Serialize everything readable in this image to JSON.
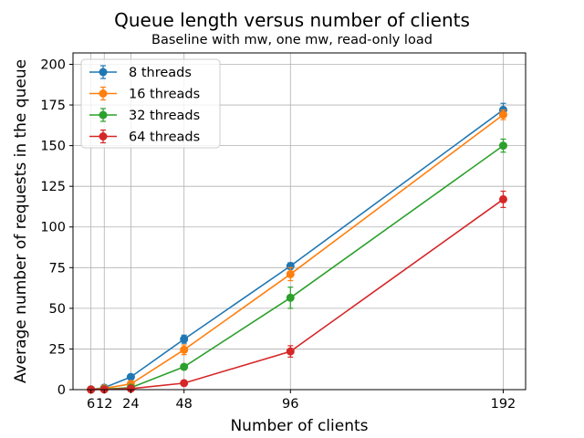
{
  "chart_data": {
    "type": "line",
    "title": "Queue length versus number of clients",
    "subtitle": "Baseline with mw, one mw, read-only load",
    "xlabel": "Number of clients",
    "ylabel": "Average number of requests in the queue",
    "x": [
      6,
      12,
      24,
      48,
      96,
      192
    ],
    "xticks": [
      "6",
      "12",
      "24",
      "48",
      "96",
      "192"
    ],
    "xlim": [
      -2.1,
      202.1
    ],
    "ylim": [
      0,
      207
    ],
    "yticks": [
      "0",
      "25",
      "50",
      "75",
      "100",
      "125",
      "150",
      "175",
      "200"
    ],
    "grid": true,
    "legend_position": "top-left",
    "error_bars": true,
    "series": [
      {
        "name": "8 threads",
        "color": "#1f77b4",
        "values": [
          0.2,
          1.2,
          7.8,
          31.0,
          76.0,
          172.0
        ],
        "errors": [
          0.3,
          0.5,
          1.0,
          2.5,
          2.0,
          4.0
        ]
      },
      {
        "name": "16 threads",
        "color": "#ff7f0e",
        "values": [
          0.1,
          0.8,
          3.5,
          24.5,
          71.0,
          169.0
        ],
        "errors": [
          0.2,
          0.4,
          0.8,
          3.0,
          4.0,
          3.0
        ]
      },
      {
        "name": "32 threads",
        "color": "#2ca02c",
        "values": [
          0.05,
          0.3,
          1.2,
          14.0,
          56.5,
          150.0
        ],
        "errors": [
          0.1,
          0.2,
          0.5,
          1.5,
          6.5,
          4.0
        ]
      },
      {
        "name": "64 threads",
        "color": "#d62728",
        "values": [
          0.02,
          0.1,
          0.6,
          4.0,
          23.5,
          117.0
        ],
        "errors": [
          0.05,
          0.1,
          0.3,
          1.0,
          3.5,
          5.0
        ]
      }
    ]
  }
}
